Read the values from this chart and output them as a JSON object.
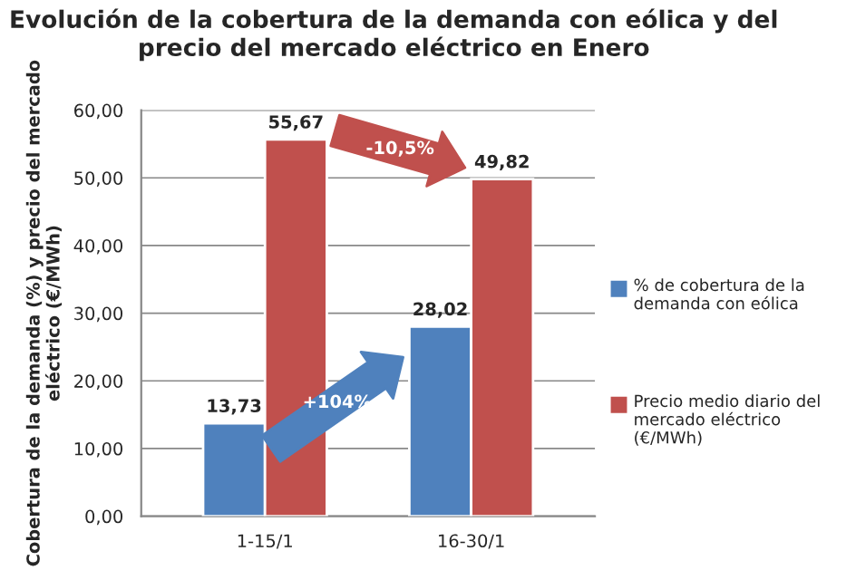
{
  "chart_data": {
    "type": "bar",
    "title": "Evolución de la cobertura de la demanda con eólica y del precio del mercado eléctrico en Enero",
    "ylabel": "Cobertura de la demanda (%) y precio del mercado eléctrico (€/MWh)",
    "categories": [
      "1-15/1",
      "16-30/1"
    ],
    "series": [
      {
        "name": "% de cobertura de la demanda con eólica",
        "color": "#4f81bd",
        "values": [
          13.73,
          28.02
        ],
        "value_labels": [
          "13,73",
          "28,02"
        ]
      },
      {
        "name": "Precio medio diario del mercado eléctrico (€/MWh)",
        "color": "#c0504d",
        "values": [
          55.67,
          49.82
        ],
        "value_labels": [
          "55,67",
          "49,82"
        ]
      }
    ],
    "ylim": [
      0,
      60
    ],
    "yticks": [
      {
        "value": 0,
        "label": "0,00"
      },
      {
        "value": 10,
        "label": "10,00"
      },
      {
        "value": 20,
        "label": "20,00"
      },
      {
        "value": 30,
        "label": "30,00"
      },
      {
        "value": 40,
        "label": "40,00"
      },
      {
        "value": 50,
        "label": "50,00"
      },
      {
        "value": 60,
        "label": "60,00"
      }
    ],
    "grid": "y",
    "legend": "right",
    "annotations": [
      "-10,5%",
      "+104%"
    ]
  }
}
